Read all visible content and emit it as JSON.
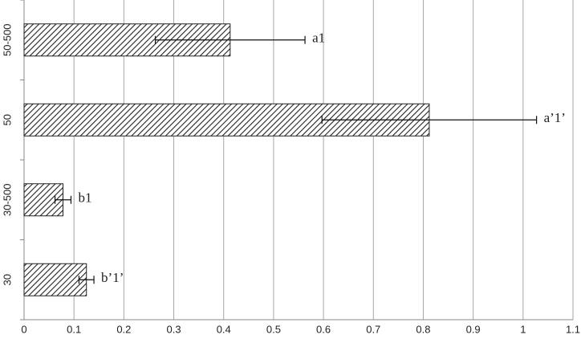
{
  "chart_data": {
    "type": "barh",
    "categories": [
      "30",
      "30-500",
      "50",
      "50-500"
    ],
    "values": [
      0.125,
      0.078,
      0.812,
      0.413
    ],
    "errors": [
      0.015,
      0.016,
      0.215,
      0.15
    ],
    "annotations": [
      "b’1’",
      "b1",
      "a’1’",
      "a1"
    ],
    "xlim": [
      0,
      1.1
    ],
    "xticks": [
      0,
      0.1,
      0.2,
      0.3,
      0.4,
      0.5,
      0.6,
      0.7,
      0.8,
      0.9,
      1,
      1.1
    ],
    "grid": true
  }
}
